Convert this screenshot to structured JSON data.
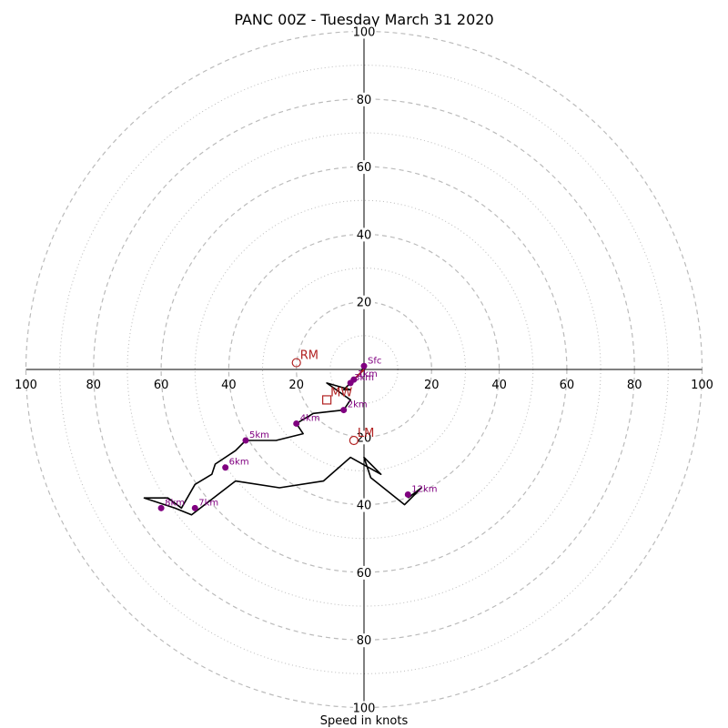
{
  "chart_data": {
    "type": "scatter",
    "title": "PANC 00Z - Tuesday March 31 2020",
    "xlabel": "Speed in knots",
    "ylabel": "",
    "xlim": [
      -100,
      100
    ],
    "ylim": [
      -100,
      100
    ],
    "ring_major": [
      20,
      40,
      60,
      80,
      100
    ],
    "ring_minor": [
      10,
      30,
      50,
      70,
      90
    ],
    "tick_values": [
      100,
      80,
      60,
      40,
      20
    ],
    "hodograph_trace": {
      "color": "#000000",
      "u": [
        0,
        -1,
        -2,
        -3,
        -4,
        -5,
        -6,
        -4,
        -11,
        -4,
        -6,
        -15,
        -20,
        -18,
        -26,
        -35,
        -38,
        -44,
        -45,
        -50,
        -54,
        -58,
        -63,
        -65,
        -56,
        -51,
        -38,
        -25,
        -12,
        -4,
        5,
        0,
        2,
        12,
        17,
        13
      ],
      "v": [
        1,
        -1,
        -2,
        -3,
        -4,
        -5,
        -6,
        -6,
        -4,
        -9,
        -12,
        -13,
        -16,
        -19,
        -21,
        -21,
        -24,
        -28,
        -31,
        -34,
        -41,
        -38,
        -38,
        -38,
        -41,
        -43,
        -33,
        -35,
        -33,
        -26,
        -31,
        -26,
        -32,
        -40,
        -35,
        -38
      ]
    },
    "height_labels": [
      {
        "label": "Sfc",
        "u": 0,
        "v": 1
      },
      {
        "label": "1km",
        "u": -3,
        "v": -3
      },
      {
        "label": "3km",
        "u": -4,
        "v": -4
      },
      {
        "label": "2km",
        "u": -6,
        "v": -12
      },
      {
        "label": "4km",
        "u": -20,
        "v": -16
      },
      {
        "label": "5km",
        "u": -35,
        "v": -21
      },
      {
        "label": "6km",
        "u": -41,
        "v": -29
      },
      {
        "label": "7km",
        "u": -50,
        "v": -41
      },
      {
        "label": "8km",
        "u": -60,
        "v": -41
      },
      {
        "label": "12km",
        "u": 13,
        "v": -37
      }
    ],
    "height_marker_color": "#800080",
    "motion_color": "#b22222",
    "storm_motion": [
      {
        "label": "RM",
        "u": -20,
        "v": 2,
        "marker": "circle"
      },
      {
        "label": "MW",
        "u": -11,
        "v": -9,
        "marker": "square"
      },
      {
        "label": "LM",
        "u": -3,
        "v": -21,
        "marker": "circle"
      }
    ],
    "mean_vector": {
      "u": -3,
      "v": -3
    },
    "grid": true
  }
}
